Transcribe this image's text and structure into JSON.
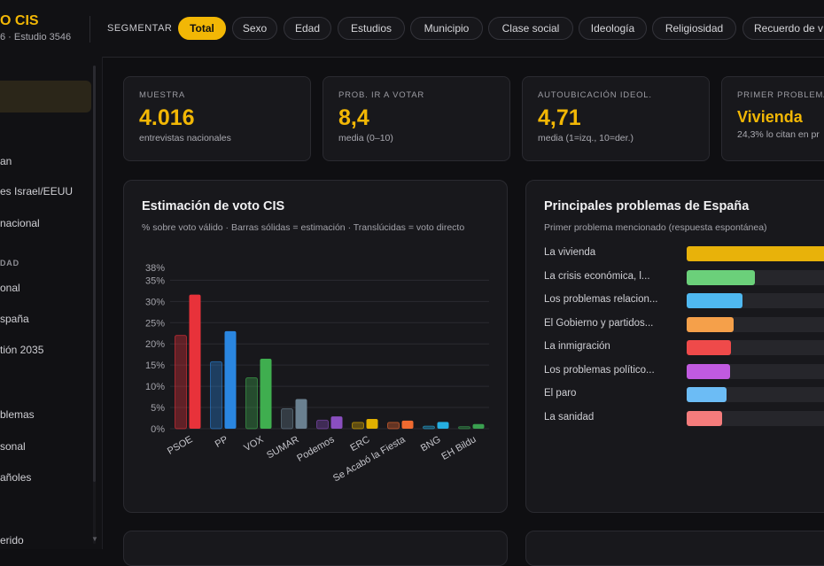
{
  "header": {
    "brand_title": "O CIS",
    "brand_subtitle": "6 · Estudio 3546",
    "segment_label": "SEGMENTAR",
    "segments": [
      {
        "label": "Total",
        "active": true
      },
      {
        "label": "Sexo"
      },
      {
        "label": "Edad"
      },
      {
        "label": "Estudios"
      },
      {
        "label": "Municipio"
      },
      {
        "label": "Clase social"
      },
      {
        "label": "Ideología"
      },
      {
        "label": "Religiosidad"
      },
      {
        "label": "Recuerdo de v"
      }
    ]
  },
  "sidebar": {
    "items": [
      {
        "label": "an"
      },
      {
        "label": "es Israel/EEUU"
      },
      {
        "label": "nacional"
      },
      {
        "label": "DAD",
        "section": true
      },
      {
        "label": "onal"
      },
      {
        "label": "spaña"
      },
      {
        "label": "tión 2035"
      },
      {
        "label": "blemas"
      },
      {
        "label": "sonal"
      },
      {
        "label": "añoles"
      },
      {
        "label": "erido"
      }
    ]
  },
  "kpis": [
    {
      "label": "MUESTRA",
      "value": "4.016",
      "sub": "entrevistas nacionales"
    },
    {
      "label": "PROB. IR A VOTAR",
      "value": "8,4",
      "sub": "media (0–10)"
    },
    {
      "label": "AUTOUBICACIÓN IDEOL.",
      "value": "4,71",
      "sub": "media (1=izq., 10=der.)"
    },
    {
      "label": "PRIMER PROBLEMA",
      "value": "Vivienda",
      "sub": "24,3% lo citan en pr"
    }
  ],
  "vote_panel": {
    "title": "Estimación de voto CIS",
    "subtitle": "% sobre voto válido · Barras sólidas = estimación · Translúcidas = voto directo"
  },
  "problems_panel": {
    "title": "Principales problemas de España",
    "subtitle": "Primer problema mencionado (respuesta espontánea)",
    "items": [
      {
        "label": "La vivienda",
        "value": 24.3,
        "color": "#e8b20a"
      },
      {
        "label": "La crisis económica, l...",
        "value": 9.3,
        "color": "#6bd07a"
      },
      {
        "label": "Los problemas relacion...",
        "value": 7.6,
        "color": "#4fb8f0"
      },
      {
        "label": "El Gobierno y partidos...",
        "value": 6.4,
        "color": "#f5a04a"
      },
      {
        "label": "La inmigración",
        "value": 6.1,
        "color": "#ef4a4a"
      },
      {
        "label": "Los problemas político...",
        "value": 5.9,
        "color": "#c05ae0"
      },
      {
        "label": "El paro",
        "value": 5.5,
        "color": "#6cbcf5"
      },
      {
        "label": "La sanidad",
        "value": 4.8,
        "color": "#f57c7c"
      }
    ]
  },
  "chart_data": {
    "type": "bar",
    "categories": [
      "PSOE",
      "PP",
      "VOX",
      "SUMAR",
      "Podemos",
      "ERC",
      "Se Acabó la Fiesta",
      "BNG",
      "EH Bildu"
    ],
    "series": [
      {
        "name": "Voto directo",
        "values": [
          22.0,
          15.8,
          12.0,
          4.7,
          2.0,
          1.5,
          1.5,
          0.6,
          0.5
        ]
      },
      {
        "name": "Estimación",
        "values": [
          31.6,
          23.0,
          16.5,
          7.0,
          2.9,
          2.3,
          1.9,
          1.6,
          1.1
        ]
      }
    ],
    "colors": [
      "#e8323a",
      "#2a86e0",
      "#3fae4f",
      "#6a8090",
      "#8a4fc0",
      "#e2b000",
      "#f06a30",
      "#26aee0",
      "#3aa050"
    ],
    "yticks": [
      0,
      5,
      10,
      15,
      20,
      25,
      30,
      35,
      38
    ],
    "ylim": [
      0,
      38
    ],
    "y_unit": "%",
    "grid": true
  }
}
